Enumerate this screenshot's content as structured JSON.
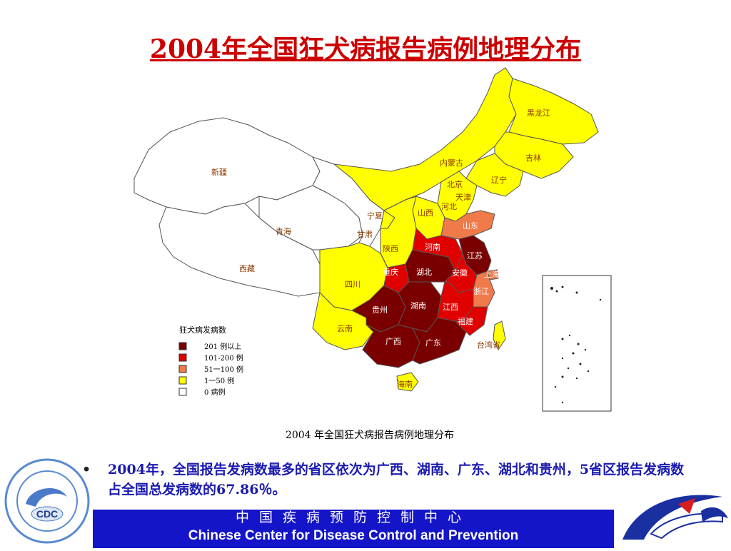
{
  "title": "2004年全国狂犬病报告病例地理分布",
  "map": {
    "caption": "2004 年全国狂犬病报告病例地理分布",
    "legend": {
      "title": "狂犬病发病数",
      "items": [
        {
          "label": "201 例以上",
          "color": "#7a0000"
        },
        {
          "label": "101-200 例",
          "color": "#e00000"
        },
        {
          "label": "51一100 例",
          "color": "#f07a4a"
        },
        {
          "label": "1一50 例",
          "color": "#ffff00"
        },
        {
          "label": "0 病例",
          "color": "#ffffff"
        }
      ]
    },
    "provinces": [
      {
        "name": "黑龙江",
        "level": "1一50 例"
      },
      {
        "name": "吉林",
        "level": "1一50 例"
      },
      {
        "name": "辽宁",
        "level": "1一50 例"
      },
      {
        "name": "内蒙古",
        "level": "1一50 例"
      },
      {
        "name": "北京",
        "level": "1一50 例"
      },
      {
        "name": "天津",
        "level": "1一50 例"
      },
      {
        "name": "河北",
        "level": "1一50 例"
      },
      {
        "name": "山西",
        "level": "1一50 例"
      },
      {
        "name": "宁夏",
        "level": "1一50 例"
      },
      {
        "name": "陕西",
        "level": "1一50 例"
      },
      {
        "name": "四川",
        "level": "1一50 例"
      },
      {
        "name": "云南",
        "level": "1一50 例"
      },
      {
        "name": "海南",
        "level": "1一50 例"
      },
      {
        "name": "台湾省",
        "level": "1一50 例"
      },
      {
        "name": "山东",
        "level": "51一100 例"
      },
      {
        "name": "上海",
        "level": "51一100 例"
      },
      {
        "name": "浙江",
        "level": "51一100 例"
      },
      {
        "name": "河南",
        "level": "101-200 例"
      },
      {
        "name": "安徽",
        "level": "101-200 例"
      },
      {
        "name": "江西",
        "level": "101-200 例"
      },
      {
        "name": "福建",
        "level": "101-200 例"
      },
      {
        "name": "重庆",
        "level": "101-200 例"
      },
      {
        "name": "江苏",
        "level": "201 例以上"
      },
      {
        "name": "湖北",
        "level": "201 例以上"
      },
      {
        "name": "湖南",
        "level": "201 例以上"
      },
      {
        "name": "贵州",
        "level": "201 例以上"
      },
      {
        "name": "广西",
        "level": "201 例以上"
      },
      {
        "name": "广东",
        "level": "201 例以上"
      },
      {
        "name": "新疆",
        "level": "0 病例"
      },
      {
        "name": "青海",
        "level": "0 病例"
      },
      {
        "name": "西藏",
        "level": "0 病例"
      },
      {
        "name": "甘肃",
        "level": "0 病例"
      }
    ]
  },
  "bullet": {
    "symbol": "•",
    "text": "2004年，全国报告发病数最多的省区依次为广西、湖南、广东、湖北和贵州，5省区报告发病数占全国总发病数的67.86％。"
  },
  "footer": {
    "cn": "中国疾病预防控制中心",
    "en": "Chinese Center for Disease Control and Prevention"
  },
  "logo_left": {
    "text": "CDC"
  }
}
